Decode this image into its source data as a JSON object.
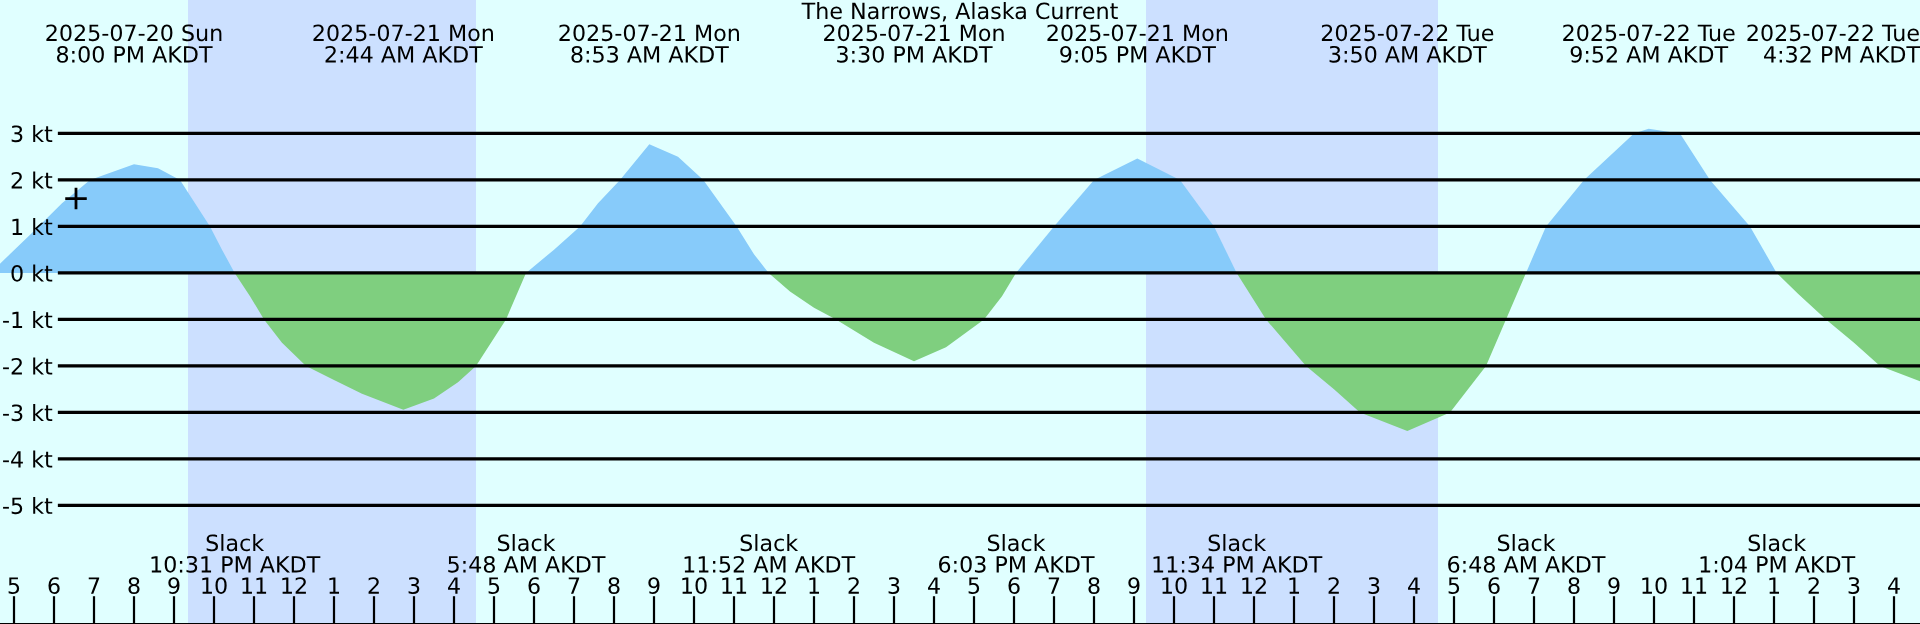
{
  "chart_data": {
    "type": "area",
    "title": "The Narrows, Alaska Current",
    "xlim": [
      "2025-07-20T16:39",
      "2025-07-22T16:39"
    ],
    "ylim": [
      -7.55,
      5.87
    ],
    "yticks": [
      {
        "value": 3,
        "label": "3 kt"
      },
      {
        "value": 2,
        "label": "2 kt"
      },
      {
        "value": 1,
        "label": "1 kt"
      },
      {
        "value": 0,
        "label": "0 kt"
      },
      {
        "value": -1,
        "label": "-1 kt"
      },
      {
        "value": -2,
        "label": "-2 kt"
      },
      {
        "value": -3,
        "label": "-3 kt"
      },
      {
        "value": -4,
        "label": "-4 kt"
      },
      {
        "value": -5,
        "label": "-5 kt"
      }
    ],
    "xticks": [
      {
        "value": "2025-07-20T17:00",
        "label": "5"
      },
      {
        "value": "2025-07-20T18:00",
        "label": "6"
      },
      {
        "value": "2025-07-20T19:00",
        "label": "7"
      },
      {
        "value": "2025-07-20T20:00",
        "label": "8"
      },
      {
        "value": "2025-07-20T21:00",
        "label": "9"
      },
      {
        "value": "2025-07-20T22:00",
        "label": "10"
      },
      {
        "value": "2025-07-20T23:00",
        "label": "11"
      },
      {
        "value": "2025-07-21T00:00",
        "label": "12"
      },
      {
        "value": "2025-07-21T01:00",
        "label": "1"
      },
      {
        "value": "2025-07-21T02:00",
        "label": "2"
      },
      {
        "value": "2025-07-21T03:00",
        "label": "3"
      },
      {
        "value": "2025-07-21T04:00",
        "label": "4"
      },
      {
        "value": "2025-07-21T05:00",
        "label": "5"
      },
      {
        "value": "2025-07-21T06:00",
        "label": "6"
      },
      {
        "value": "2025-07-21T07:00",
        "label": "7"
      },
      {
        "value": "2025-07-21T08:00",
        "label": "8"
      },
      {
        "value": "2025-07-21T09:00",
        "label": "9"
      },
      {
        "value": "2025-07-21T10:00",
        "label": "10"
      },
      {
        "value": "2025-07-21T11:00",
        "label": "11"
      },
      {
        "value": "2025-07-21T12:00",
        "label": "12"
      },
      {
        "value": "2025-07-21T13:00",
        "label": "1"
      },
      {
        "value": "2025-07-21T14:00",
        "label": "2"
      },
      {
        "value": "2025-07-21T15:00",
        "label": "3"
      },
      {
        "value": "2025-07-21T16:00",
        "label": "4"
      },
      {
        "value": "2025-07-21T17:00",
        "label": "5"
      },
      {
        "value": "2025-07-21T18:00",
        "label": "6"
      },
      {
        "value": "2025-07-21T19:00",
        "label": "7"
      },
      {
        "value": "2025-07-21T20:00",
        "label": "8"
      },
      {
        "value": "2025-07-21T21:00",
        "label": "9"
      },
      {
        "value": "2025-07-21T22:00",
        "label": "10"
      },
      {
        "value": "2025-07-21T23:00",
        "label": "11"
      },
      {
        "value": "2025-07-22T00:00",
        "label": "12"
      },
      {
        "value": "2025-07-22T01:00",
        "label": "1"
      },
      {
        "value": "2025-07-22T02:00",
        "label": "2"
      },
      {
        "value": "2025-07-22T03:00",
        "label": "3"
      },
      {
        "value": "2025-07-22T04:00",
        "label": "4"
      },
      {
        "value": "2025-07-22T05:00",
        "label": "5"
      },
      {
        "value": "2025-07-22T06:00",
        "label": "6"
      },
      {
        "value": "2025-07-22T07:00",
        "label": "7"
      },
      {
        "value": "2025-07-22T08:00",
        "label": "8"
      },
      {
        "value": "2025-07-22T09:00",
        "label": "9"
      },
      {
        "value": "2025-07-22T10:00",
        "label": "10"
      },
      {
        "value": "2025-07-22T11:00",
        "label": "11"
      },
      {
        "value": "2025-07-22T12:00",
        "label": "12"
      },
      {
        "value": "2025-07-22T13:00",
        "label": "1"
      },
      {
        "value": "2025-07-22T14:00",
        "label": "2"
      },
      {
        "value": "2025-07-22T15:00",
        "label": "3"
      },
      {
        "value": "2025-07-22T16:00",
        "label": "4"
      }
    ],
    "grid": "y",
    "legend": false,
    "series": [
      {
        "color": "#87cbfa",
        "x": [
          "2025-07-20T16:39",
          "2025-07-20T17:30",
          "2025-07-20T18:12",
          "2025-07-20T18:54",
          "2025-07-20T20:00",
          "2025-07-20T20:36",
          "2025-07-20T21:09",
          "2025-07-20T21:54",
          "2025-07-20T22:12",
          "2025-07-20T22:31",
          null,
          "2025-07-21T05:48",
          "2025-07-21T06:30",
          "2025-07-21T07:09",
          "2025-07-21T07:36",
          "2025-07-21T08:09",
          "2025-07-21T08:53",
          "2025-07-21T09:36",
          "2025-07-21T10:14",
          "2025-07-21T11:04",
          "2025-07-21T11:30",
          "2025-07-21T11:52",
          null,
          "2025-07-21T18:03",
          "2025-07-21T19:00",
          "2025-07-21T20:00",
          "2025-07-21T21:05",
          "2025-07-21T22:09",
          "2025-07-21T23:00",
          "2025-07-21T23:34",
          null,
          "2025-07-22T06:48",
          "2025-07-22T07:18",
          "2025-07-22T08:15",
          "2025-07-22T09:30",
          "2025-07-22T09:52",
          "2025-07-22T10:39",
          "2025-07-22T11:24",
          "2025-07-22T12:24",
          "2025-07-22T13:04"
        ],
        "values": [
          0.2,
          0.9,
          1.5,
          2.0,
          2.34,
          2.25,
          2.0,
          1.0,
          0.5,
          0,
          null,
          0,
          0.5,
          1,
          1.5,
          2,
          2.77,
          2.5,
          2,
          1,
          0.4,
          0,
          null,
          0,
          1,
          2,
          2.46,
          2,
          1,
          0,
          null,
          0,
          1,
          2,
          3,
          3.1,
          3,
          2,
          1,
          0
        ]
      },
      {
        "color": "#7fcf7f",
        "x": [
          "2025-07-20T22:31",
          "2025-07-20T22:54",
          "2025-07-20T23:15",
          "2025-07-20T23:42",
          "2025-07-21T00:18",
          "2025-07-21T01:00",
          "2025-07-21T01:42",
          "2025-07-21T02:44",
          "2025-07-21T03:30",
          "2025-07-21T04:06",
          "2025-07-21T04:33",
          "2025-07-21T05:18",
          "2025-07-21T05:48",
          null,
          "2025-07-21T11:52",
          "2025-07-21T12:24",
          "2025-07-21T13:00",
          "2025-07-21T13:33",
          "2025-07-21T14:30",
          "2025-07-21T15:30",
          "2025-07-21T16:18",
          "2025-07-21T17:15",
          "2025-07-21T17:42",
          "2025-07-21T18:03",
          null,
          "2025-07-21T23:34",
          "2025-07-22T00:18",
          "2025-07-22T01:18",
          "2025-07-22T02:00",
          "2025-07-22T02:39",
          "2025-07-22T03:50",
          "2025-07-22T04:54",
          "2025-07-22T05:48",
          "2025-07-22T06:18",
          "2025-07-22T06:48",
          null,
          "2025-07-22T13:04",
          "2025-07-22T13:36",
          "2025-07-22T14:18",
          "2025-07-22T15:00",
          "2025-07-22T15:39",
          "2025-07-22T16:39"
        ],
        "values": [
          0,
          -0.5,
          -1,
          -1.5,
          -2,
          -2.3,
          -2.6,
          -2.94,
          -2.7,
          -2.35,
          -2,
          -1,
          0,
          null,
          0,
          -0.4,
          -0.75,
          -1,
          -1.5,
          -1.9,
          -1.6,
          -1,
          -0.5,
          0,
          null,
          0,
          -1,
          -2,
          -2.5,
          -3,
          -3.4,
          -3,
          -2,
          -1,
          0,
          null,
          0,
          -0.45,
          -1,
          -1.5,
          -2,
          -2.33
        ]
      },
      {
        "type": "scatter",
        "marker": "cross",
        "color": "#000000",
        "x": [
          "2025-07-20T18:33"
        ],
        "values": [
          1.6
        ]
      }
    ],
    "bands": [
      {
        "axis": "x",
        "from": "2025-07-20T21:21",
        "to": "2025-07-21T04:33",
        "color": "#cce0ff"
      },
      {
        "axis": "x",
        "from": "2025-07-21T21:18",
        "to": "2025-07-22T04:36",
        "color": "#cce0ff"
      }
    ],
    "annotations": [
      "2025-07-20 Sun\n8:00 PM AKDT",
      "2025-07-21 Mon\n2:44 AM AKDT",
      "2025-07-21 Mon\n8:53 AM AKDT",
      "2025-07-21 Mon\n3:30 PM AKDT",
      "2025-07-21 Mon\n9:05 PM AKDT",
      "2025-07-22 Tue\n3:50 AM AKDT",
      "2025-07-22 Tue\n9:52 AM AKDT",
      "2025-07-22 Tue\n4:32 PM AKDT",
      "Slack\n10:31 PM AKDT",
      "Slack\n5:48 AM AKDT",
      "Slack\n11:52 AM AKDT",
      "Slack\n6:03 PM AKDT",
      "Slack\n11:34 PM AKDT",
      "Slack\n6:48 AM AKDT",
      "Slack\n1:04 PM AKDT"
    ]
  }
}
